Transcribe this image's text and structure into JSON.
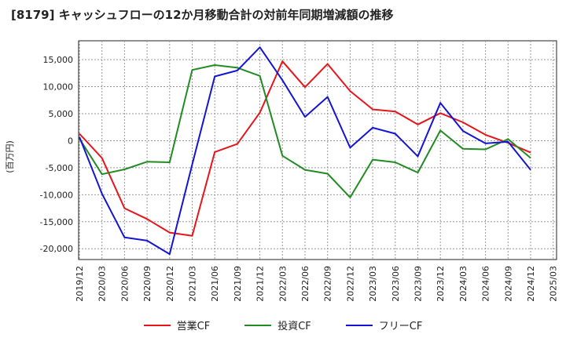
{
  "chart_data": {
    "type": "line",
    "title": "[8179]  キャッシュフローの12か月移動合計の対前年同期増減額の推移",
    "ylabel": "(百万円)",
    "xlabel": "",
    "ylim": [
      -22000,
      18500
    ],
    "grid": true,
    "yticks": [
      15000,
      10000,
      5000,
      0,
      -5000,
      -10000,
      -15000,
      -20000
    ],
    "ytick_labels": [
      "15,000",
      "10,000",
      "5,000",
      "0",
      "-5,000",
      "-10,000",
      "-15,000",
      "-20,000"
    ],
    "xtick_labels": [
      "2019/12",
      "2020/03",
      "2020/06",
      "2020/09",
      "2020/12",
      "2021/03",
      "2021/06",
      "2021/09",
      "2021/12",
      "2022/03",
      "2022/06",
      "2022/09",
      "2022/12",
      "2023/03",
      "2023/06",
      "2023/09",
      "2023/12",
      "2024/03",
      "2024/06",
      "2024/09",
      "2024/12",
      "2025/03"
    ],
    "categories": [
      "2019/12",
      "2020/03",
      "2020/06",
      "2020/09",
      "2020/12",
      "2021/03",
      "2021/06",
      "2021/09",
      "2021/12",
      "2022/03",
      "2022/06",
      "2022/09",
      "2022/12",
      "2023/03",
      "2023/06",
      "2023/09",
      "2023/12",
      "2024/03",
      "2024/06",
      "2024/09",
      "2024/12"
    ],
    "series": [
      {
        "name": "営業CF",
        "color": "#e8141b",
        "values": [
          1300,
          -3200,
          -12500,
          -14500,
          -17000,
          -17600,
          -2100,
          -600,
          5200,
          14700,
          9900,
          14200,
          9200,
          5800,
          5400,
          3000,
          5100,
          3400,
          1100,
          -400,
          -2200
        ]
      },
      {
        "name": "投資CF",
        "color": "#228b22",
        "values": [
          400,
          -6200,
          -5300,
          -3900,
          -4000,
          13100,
          14000,
          13500,
          12000,
          -2800,
          -5400,
          -6100,
          -10500,
          -3500,
          -4000,
          -5900,
          1900,
          -1500,
          -1600,
          300,
          -3200
        ]
      },
      {
        "name": "フリーCF",
        "color": "#1414d2",
        "values": [
          700,
          -9800,
          -17900,
          -18500,
          -21000,
          -4400,
          11900,
          13000,
          17300,
          11200,
          4400,
          8100,
          -1300,
          2400,
          1300,
          -2900,
          7000,
          1800,
          -500,
          -200,
          -5400
        ]
      }
    ]
  }
}
